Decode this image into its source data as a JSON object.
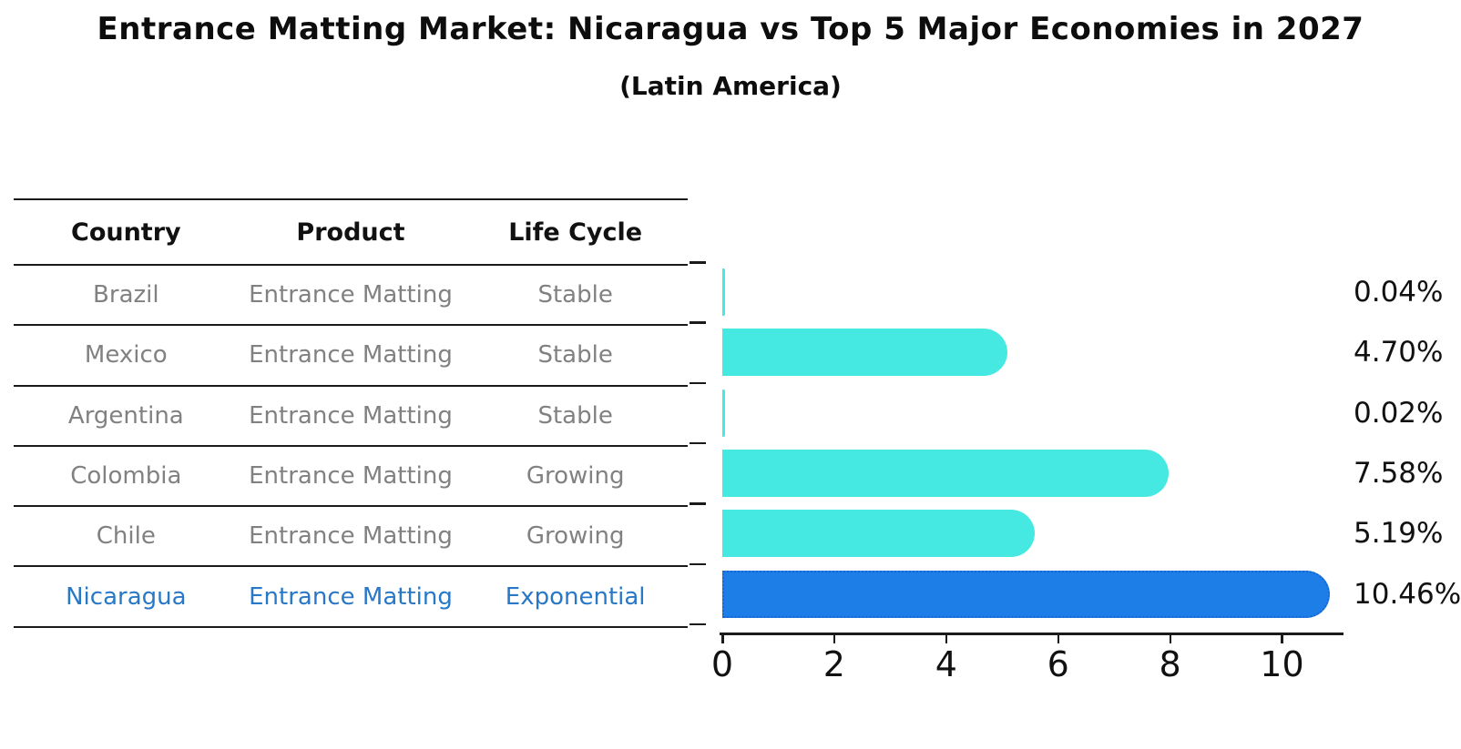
{
  "title": "Entrance Matting Market: Nicaragua vs Top 5 Major Economies in 2027",
  "subtitle": "(Latin America)",
  "table": {
    "headers": [
      "Country",
      "Product",
      "Life Cycle"
    ],
    "rows": [
      {
        "country": "Brazil",
        "product": "Entrance Matting",
        "life_cycle": "Stable",
        "highlight": false
      },
      {
        "country": "Mexico",
        "product": "Entrance Matting",
        "life_cycle": "Stable",
        "highlight": false
      },
      {
        "country": "Argentina",
        "product": "Entrance Matting",
        "life_cycle": "Stable",
        "highlight": false
      },
      {
        "country": "Colombia",
        "product": "Entrance Matting",
        "life_cycle": "Growing",
        "highlight": false
      },
      {
        "country": "Chile",
        "product": "Entrance Matting",
        "life_cycle": "Growing",
        "highlight": false
      },
      {
        "country": "Nicaragua",
        "product": "Entrance Matting",
        "life_cycle": "Exponential",
        "highlight": true
      }
    ]
  },
  "chart_data": {
    "type": "bar",
    "orientation": "horizontal",
    "title": "Entrance Matting Market: Nicaragua vs Top 5 Major Economies in 2027",
    "subtitle": "(Latin America)",
    "categories": [
      "Brazil",
      "Mexico",
      "Argentina",
      "Colombia",
      "Chile",
      "Nicaragua"
    ],
    "values": [
      0.04,
      4.7,
      0.02,
      7.58,
      5.19,
      10.46
    ],
    "value_labels": [
      "0.04%",
      "4.70%",
      "0.02%",
      "7.58%",
      "5.19%",
      "10.46%"
    ],
    "x_ticks": [
      "0",
      "2",
      "4",
      "6",
      "8",
      "10"
    ],
    "xlim": [
      0,
      11.05
    ],
    "grid": false,
    "legend": false,
    "bar_color": "#46E8E2",
    "highlight_color": "#1E7EE8",
    "highlight_index": 5,
    "text_color": "#111111",
    "muted_text_color": "#818181",
    "highlight_text_color": "#2878C8"
  }
}
